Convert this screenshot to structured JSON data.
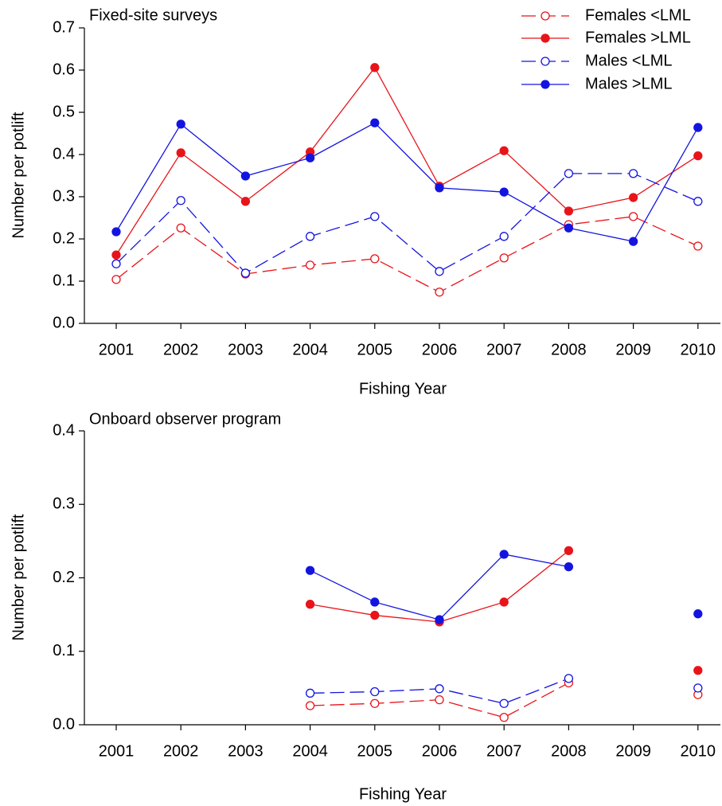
{
  "chart_data": [
    {
      "type": "line",
      "title": "Fixed-site surveys",
      "x_label": "Fishing Year",
      "y_label": "Number per potlift",
      "categories": [
        "2001",
        "2002",
        "2003",
        "2004",
        "2005",
        "2006",
        "2007",
        "2008",
        "2009",
        "2010"
      ],
      "ylim": [
        0,
        0.7
      ],
      "yticks": [
        {
          "value": 0,
          "label": "0.0"
        },
        0.1,
        0.2,
        0.3,
        0.4,
        0.5,
        0.6,
        0.7
      ],
      "legend": "upper right",
      "series": [
        {
          "name": "Females <LML",
          "color": "#e8141a",
          "dashed": true,
          "marker": "open",
          "values": [
            0.104,
            0.226,
            0.117,
            0.138,
            0.153,
            0.074,
            0.155,
            0.234,
            0.253,
            0.183
          ]
        },
        {
          "name": "Females >LML",
          "color": "#e8141a",
          "dashed": false,
          "marker": "filled",
          "values": [
            0.162,
            0.404,
            0.289,
            0.406,
            0.606,
            0.325,
            0.409,
            0.266,
            0.298,
            0.397
          ]
        },
        {
          "name": "Males <LML",
          "color": "#1414e0",
          "dashed": true,
          "marker": "open",
          "values": [
            0.141,
            0.291,
            0.119,
            0.206,
            0.253,
            0.123,
            0.206,
            0.355,
            0.355,
            0.289
          ]
        },
        {
          "name": "Males >LML",
          "color": "#1414e0",
          "dashed": false,
          "marker": "filled",
          "values": [
            0.217,
            0.472,
            0.349,
            0.392,
            0.475,
            0.321,
            0.311,
            0.226,
            0.194,
            0.464
          ]
        }
      ]
    },
    {
      "type": "line",
      "title": "Onboard observer program",
      "x_label": "Fishing Year",
      "y_label": "Number per potlift",
      "categories": [
        "2001",
        "2002",
        "2003",
        "2004",
        "2005",
        "2006",
        "2007",
        "2008",
        "2009",
        "2010"
      ],
      "ylim": [
        0,
        0.4
      ],
      "yticks": [
        {
          "value": 0,
          "label": "0.0"
        },
        0.1,
        0.2,
        0.3,
        0.4
      ],
      "series": [
        {
          "color": "#e8141a",
          "dashed": true,
          "marker": "open",
          "values": [
            null,
            null,
            null,
            0.026,
            0.029,
            0.034,
            0.01,
            0.057,
            null,
            0.041
          ]
        },
        {
          "color": "#e8141a",
          "dashed": false,
          "marker": "filled",
          "values": [
            null,
            null,
            null,
            0.164,
            0.149,
            0.14,
            0.167,
            0.237,
            null,
            0.074
          ]
        },
        {
          "color": "#1414e0",
          "dashed": true,
          "marker": "open",
          "values": [
            null,
            null,
            null,
            0.043,
            0.045,
            0.049,
            0.029,
            0.063,
            null,
            0.05
          ]
        },
        {
          "color": "#1414e0",
          "dashed": false,
          "marker": "filled",
          "values": [
            null,
            null,
            null,
            0.21,
            0.167,
            0.143,
            0.232,
            0.215,
            null,
            0.151
          ]
        }
      ]
    }
  ]
}
